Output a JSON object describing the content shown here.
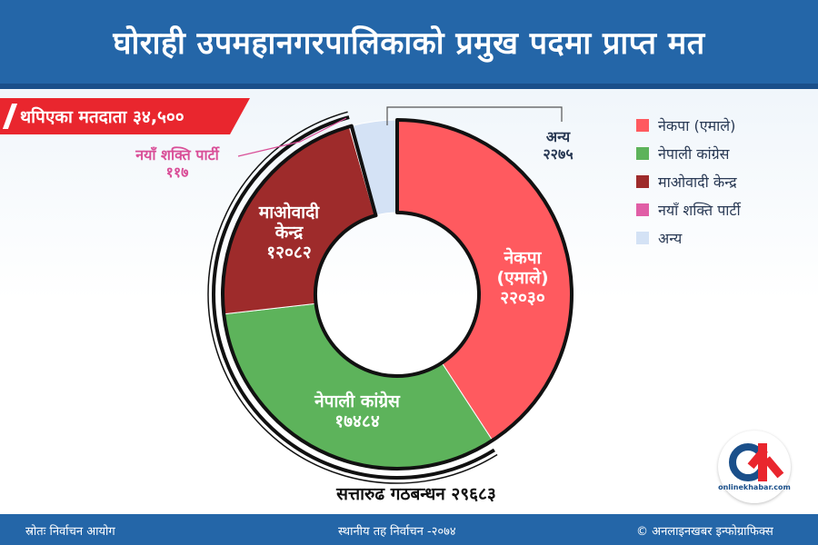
{
  "title": "घोराही उपमहानगरपालिकाको प्रमुख पदमा प्राप्त मत",
  "voters_tag": "थपिएका मतदाता ३४,५००",
  "coalition_label": "सत्तारुढ गठबन्धन २९६८३",
  "footer": {
    "source": "स्रोतः निर्वाचन आयोग",
    "center": "स्थानीय तह निर्वाचन -२०७४",
    "credit": "© अनलाइनखबर इन्फोग्राफिक्स"
  },
  "logo": {
    "brand": "onlinekhabar.com"
  },
  "chart_data": {
    "type": "pie",
    "style": "donut",
    "categories": [
      "नेकपा (एमाले)",
      "नेपाली कांग्रेस",
      "माओवादी केन्द्र",
      "नयाँ शक्ति पार्टी",
      "अन्य"
    ],
    "values": [
      22030,
      17484,
      12082,
      117,
      2275
    ],
    "colors": [
      "#ff5a5f",
      "#5db35b",
      "#9e2b2b",
      "#e05ea6",
      "#d4e2f5"
    ],
    "slice_labels": [
      [
        "नेकपा",
        "(एमाले)",
        "२२०३०"
      ],
      [
        "नेपाली कांग्रेस",
        "१७४८४"
      ],
      [
        "माओवादी",
        "केन्द्र",
        "१२०८२"
      ],
      [
        "नयाँ शक्ति पार्टी",
        "११७"
      ],
      [
        "अन्य",
        "२२७५"
      ]
    ],
    "legend_position": "right"
  }
}
